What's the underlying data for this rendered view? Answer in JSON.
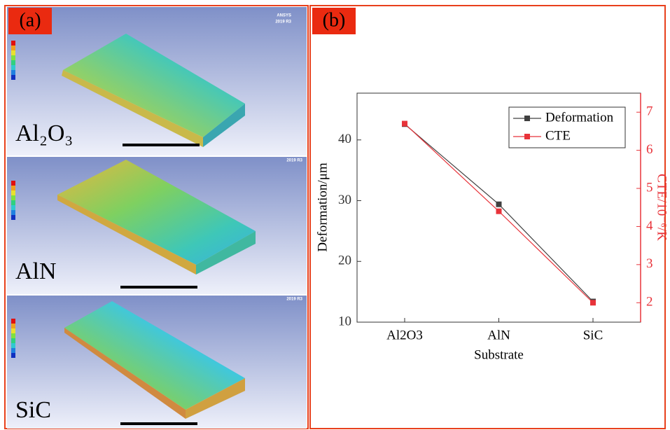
{
  "panels": {
    "a": "(a)",
    "b": "(b)"
  },
  "software": {
    "name": "ANSYS",
    "version": "2019 R3"
  },
  "fea_images": [
    {
      "label": "Al₂O₃"
    },
    {
      "label": "AlN"
    },
    {
      "label": "SiC"
    }
  ],
  "chart_data": {
    "type": "line",
    "categories": [
      "Al2O3",
      "AlN",
      "SiC"
    ],
    "series": [
      {
        "name": "Deformation",
        "color": "#404040",
        "values": [
          42.6,
          29.4,
          13.4
        ]
      },
      {
        "name": "CTE",
        "color": "#e8333a",
        "axis": "y2",
        "values": [
          6.7,
          4.4,
          2.0
        ]
      }
    ],
    "xlabel": "Substrate",
    "ylabel": "Deformation/μm",
    "y2label": "CTE/10⁻⁶/K",
    "ylim": [
      10,
      47.7
    ],
    "yticks": [
      10,
      20,
      30,
      40
    ],
    "y2lim": [
      1.49,
      7.5
    ],
    "y2ticks": [
      2,
      3,
      4,
      5,
      6,
      7
    ],
    "legend": "upper right",
    "marker": "square"
  }
}
